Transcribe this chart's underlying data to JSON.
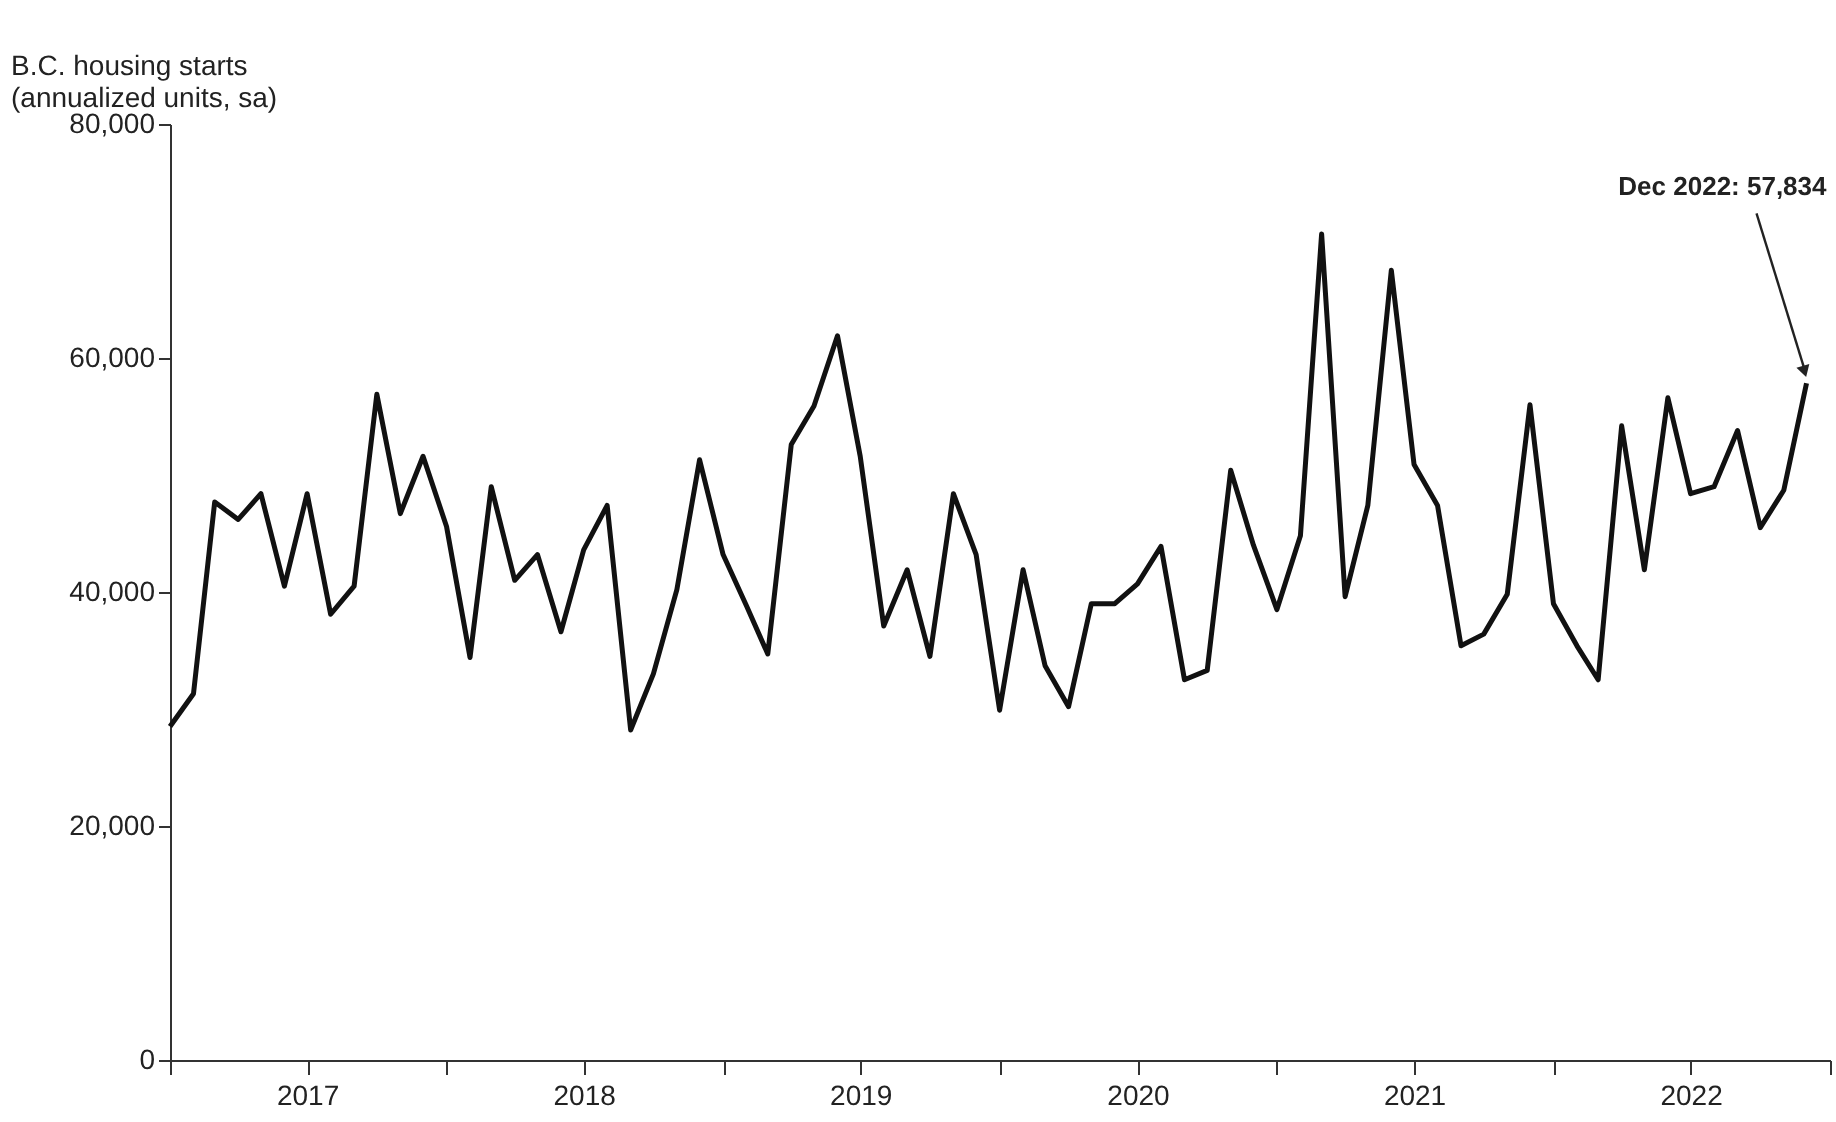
{
  "chart_data": {
    "type": "line",
    "ylabel": "B.C. housing starts\n(annualized units, sa)",
    "x": [
      "2017-01",
      "2017-02",
      "2017-03",
      "2017-04",
      "2017-05",
      "2017-06",
      "2017-07",
      "2017-08",
      "2017-09",
      "2017-10",
      "2017-11",
      "2017-12",
      "2018-01",
      "2018-02",
      "2018-03",
      "2018-04",
      "2018-05",
      "2018-06",
      "2018-07",
      "2018-08",
      "2018-09",
      "2018-10",
      "2018-11",
      "2018-12",
      "2019-01",
      "2019-02",
      "2019-03",
      "2019-04",
      "2019-05",
      "2019-06",
      "2019-07",
      "2019-08",
      "2019-09",
      "2019-10",
      "2019-11",
      "2019-12",
      "2020-01",
      "2020-02",
      "2020-03",
      "2020-04",
      "2020-05",
      "2020-06",
      "2020-07",
      "2020-08",
      "2020-09",
      "2020-10",
      "2020-11",
      "2020-12",
      "2021-01",
      "2021-02",
      "2021-03",
      "2021-04",
      "2021-05",
      "2021-06",
      "2021-07",
      "2021-08",
      "2021-09",
      "2021-10",
      "2021-11",
      "2021-12",
      "2022-01",
      "2022-02",
      "2022-03",
      "2022-04",
      "2022-05",
      "2022-06",
      "2022-07",
      "2022-08",
      "2022-09",
      "2022-10",
      "2022-11",
      "2022-12"
    ],
    "series": [
      {
        "color": "#111111",
        "values": [
          28500,
          31300,
          47700,
          46200,
          48400,
          40500,
          48400,
          38100,
          40500,
          56900,
          46700,
          51600,
          45600,
          34400,
          49000,
          41000,
          43200,
          36600,
          43600,
          47400,
          28200,
          33000,
          40200,
          51300,
          43200,
          38800,
          34700,
          52600,
          55900,
          61900,
          51600,
          37100,
          41900,
          34500,
          48400,
          43200,
          29900,
          41900,
          33700,
          30200,
          39000,
          39000,
          40700,
          43900,
          32500,
          33300,
          50400,
          44000,
          38500,
          44800,
          70600,
          39600,
          47400,
          67500,
          50900,
          47400,
          35400,
          36400,
          39800,
          56000,
          39000,
          35400,
          32500,
          54200,
          41900,
          56600,
          48400,
          49000,
          53800,
          45500,
          48700,
          57834
        ]
      }
    ],
    "xlim": [
      "2017-01",
      "2023-01"
    ],
    "xticks": [
      {
        "value": "2017-01",
        "label": null
      },
      {
        "value": "2017-07",
        "label": "2017"
      },
      {
        "value": "2018-01",
        "label": null
      },
      {
        "value": "2018-07",
        "label": "2018"
      },
      {
        "value": "2019-01",
        "label": null
      },
      {
        "value": "2019-07",
        "label": "2019"
      },
      {
        "value": "2020-01",
        "label": null
      },
      {
        "value": "2020-07",
        "label": "2020"
      },
      {
        "value": "2021-01",
        "label": null
      },
      {
        "value": "2021-07",
        "label": "2021"
      },
      {
        "value": "2022-01",
        "label": null
      },
      {
        "value": "2022-07",
        "label": "2022"
      },
      {
        "value": "2023-01",
        "label": null
      }
    ],
    "ylim": [
      0,
      80000
    ],
    "yticks": [
      0,
      {
        "value": 20000,
        "label": "20,000"
      },
      {
        "value": 40000,
        "label": "40,000"
      },
      {
        "value": 60000,
        "label": "60,000"
      },
      {
        "value": 80000,
        "label": "80,000"
      }
    ],
    "annotations": [
      {
        "text": "Dec 2022: 57,834",
        "x": "2022-12",
        "y": 57834
      }
    ],
    "grid": false,
    "marker": "none",
    "line_style": "solid"
  }
}
